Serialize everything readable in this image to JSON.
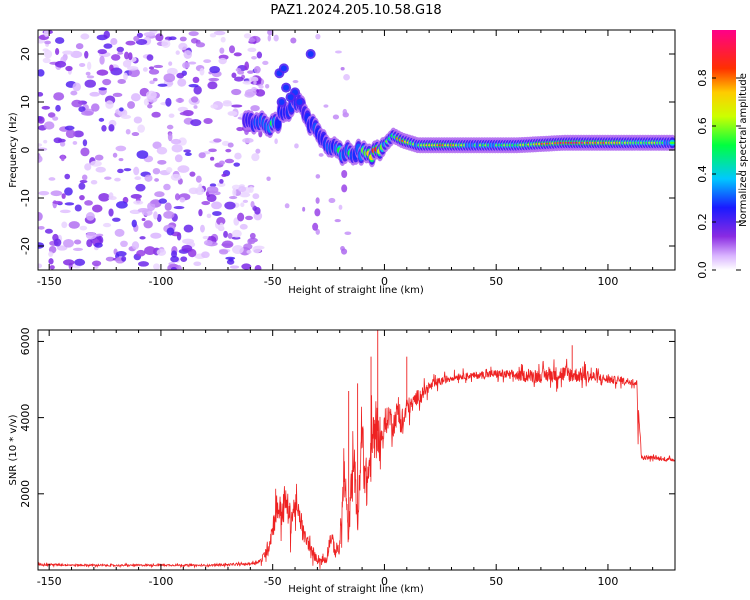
{
  "title": "PAZ1.2024.205.10.58.G18",
  "colors": {
    "snr_line": "#ee2222",
    "axis": "#000000"
  },
  "chart_data": [
    {
      "type": "heatmap",
      "xlabel": "Height of straight line (km)",
      "ylabel": "Frequency (Hz)",
      "xlim": [
        -155,
        130
      ],
      "ylim": [
        -25,
        25
      ],
      "x_ticks": [
        -150,
        -100,
        -50,
        0,
        50,
        100
      ],
      "y_ticks": [
        -20,
        -10,
        0,
        10,
        20
      ],
      "colorbar": {
        "label": "Normalized spectral amplitude",
        "range": [
          0,
          1
        ],
        "ticks": [
          "0.0",
          "0.2",
          "0.4",
          "0.6",
          "0.8"
        ],
        "colormap": "rainbow (white → violet → blue → cyan → green → yellow → red → magenta)"
      },
      "description_of_values": "Scattered low-amplitude (violet) noise blobs across all frequencies for heights below about -55 km; a coherent ridge emerges near -60 km at ~5 Hz, peaks near 12 Hz at about -42 km, descends through 0 Hz near -20 km to about -2 Hz, then settles into a narrow band near 1–2 Hz for heights above about 0 km with red/orange peaks near -5, 20, 80–90 and 105 km.",
      "ridge": {
        "x": [
          -62,
          -55,
          -50,
          -45,
          -40,
          -36,
          -32,
          -28,
          -24,
          -20,
          -16,
          -12,
          -8,
          -4,
          0,
          4,
          8,
          15,
          25,
          40,
          60,
          80,
          100,
          120,
          130
        ],
        "y": [
          6,
          6,
          5,
          8,
          10,
          8,
          5,
          3,
          1,
          0,
          -1,
          0,
          -1,
          -1,
          1,
          3,
          2,
          1,
          1,
          1,
          1,
          1.5,
          1.5,
          1.5,
          1.5
        ],
        "amplitude": [
          0.3,
          0.45,
          0.5,
          0.4,
          0.45,
          0.35,
          0.45,
          0.35,
          0.45,
          0.5,
          0.5,
          0.4,
          0.6,
          0.85,
          0.55,
          0.55,
          0.85,
          0.55,
          0.85,
          0.55,
          0.6,
          0.9,
          0.75,
          0.6,
          0.55
        ]
      }
    },
    {
      "type": "line",
      "xlabel": "Height of straight line (km)",
      "ylabel": "SNR (10 * v/v)",
      "xlim": [
        -155,
        130
      ],
      "ylim": [
        0,
        6300
      ],
      "x_ticks": [
        -150,
        -100,
        -50,
        0,
        50,
        100
      ],
      "y_ticks": [
        2000,
        4000,
        6000
      ],
      "series": [
        {
          "x": [
            -155,
            -140,
            -120,
            -100,
            -80,
            -60,
            -55,
            -52,
            -50,
            -48,
            -46,
            -44,
            -42,
            -40,
            -38,
            -36,
            -34,
            -32,
            -30,
            -28,
            -26,
            -24,
            -22,
            -20,
            -18,
            -16,
            -14,
            -12,
            -10,
            -8,
            -6,
            -4,
            -2,
            0,
            2,
            4,
            6,
            8,
            10,
            12,
            14,
            16,
            18,
            20,
            25,
            30,
            35,
            40,
            50,
            60,
            70,
            80,
            90,
            100,
            110,
            113,
            115,
            120,
            125,
            130
          ],
          "y": [
            150,
            130,
            120,
            130,
            120,
            160,
            250,
            600,
            1100,
            1700,
            1500,
            1800,
            1300,
            1700,
            1400,
            900,
            700,
            400,
            300,
            250,
            300,
            900,
            500,
            600,
            2500,
            800,
            3300,
            1200,
            3500,
            2200,
            3000,
            4000,
            3300,
            3700,
            4100,
            3800,
            4200,
            3700,
            4300,
            4300,
            4500,
            4600,
            4700,
            4800,
            4950,
            5050,
            5100,
            5100,
            5150,
            5100,
            5100,
            5150,
            5100,
            5000,
            4950,
            4900,
            2950,
            2950,
            2900,
            2900
          ],
          "noise_amplitude": [
            60,
            50,
            50,
            50,
            50,
            60,
            150,
            500,
            700,
            900,
            900,
            900,
            900,
            800,
            600,
            500,
            400,
            300,
            250,
            300,
            300,
            500,
            400,
            500,
            1400,
            600,
            1400,
            900,
            1600,
            1500,
            1600,
            1500,
            1000,
            800,
            700,
            700,
            700,
            650,
            600,
            500,
            450,
            400,
            350,
            300,
            250,
            200,
            200,
            200,
            250,
            300,
            400,
            500,
            400,
            250,
            200,
            200,
            150,
            100,
            100,
            100
          ],
          "spikes": [
            {
              "x": -3,
              "y": 6300
            },
            {
              "x": -6,
              "y": 5600
            },
            {
              "x": 10,
              "y": 5600
            },
            {
              "x": -12,
              "y": 4900
            },
            {
              "x": -16,
              "y": 4700
            },
            {
              "x": 84,
              "y": 5900
            }
          ]
        }
      ]
    }
  ]
}
